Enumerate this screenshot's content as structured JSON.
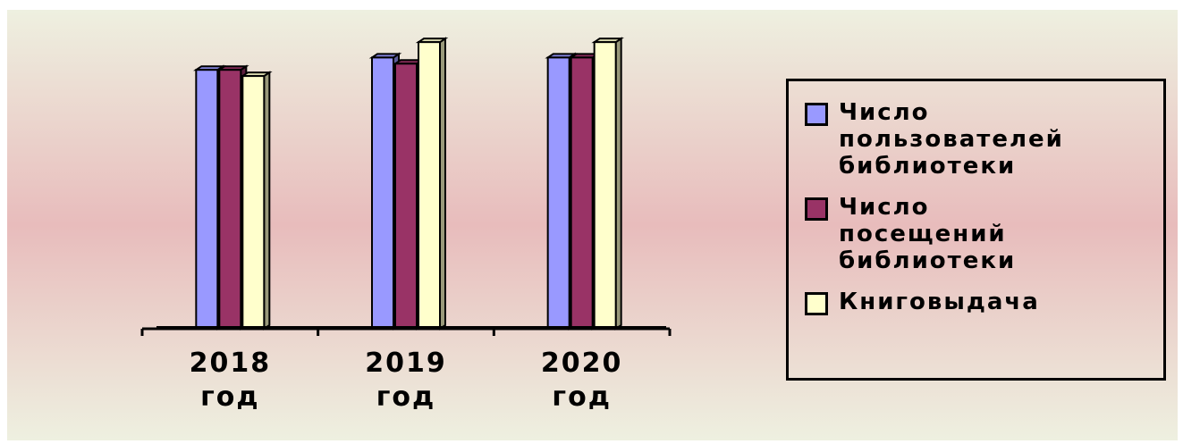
{
  "chart_data": {
    "type": "bar",
    "title": "",
    "xlabel": "",
    "ylabel": "",
    "ylim": [
      0,
      100
    ],
    "grid": false,
    "legend_position": "right",
    "categories": [
      "2018 год",
      "2019 год",
      "2020 год"
    ],
    "category_lines": [
      [
        "2018",
        "год"
      ],
      [
        "2019",
        "год"
      ],
      [
        "2020",
        "год"
      ]
    ],
    "series": [
      {
        "name": "Число пользователей библиотеки",
        "legend_lines": "Число\nпользователей\nбиблиотеки",
        "color": "#9999ff",
        "values": [
          84,
          88,
          88
        ]
      },
      {
        "name": "Число посещений библиотеки",
        "legend_lines": "Число\nпосещений\nбиблиотеки",
        "color": "#993366",
        "values": [
          84,
          86,
          88
        ]
      },
      {
        "name": "Книговыдача",
        "legend_lines": "Книговыдача",
        "color": "#ffffcc",
        "values": [
          82,
          93,
          93
        ]
      }
    ]
  }
}
